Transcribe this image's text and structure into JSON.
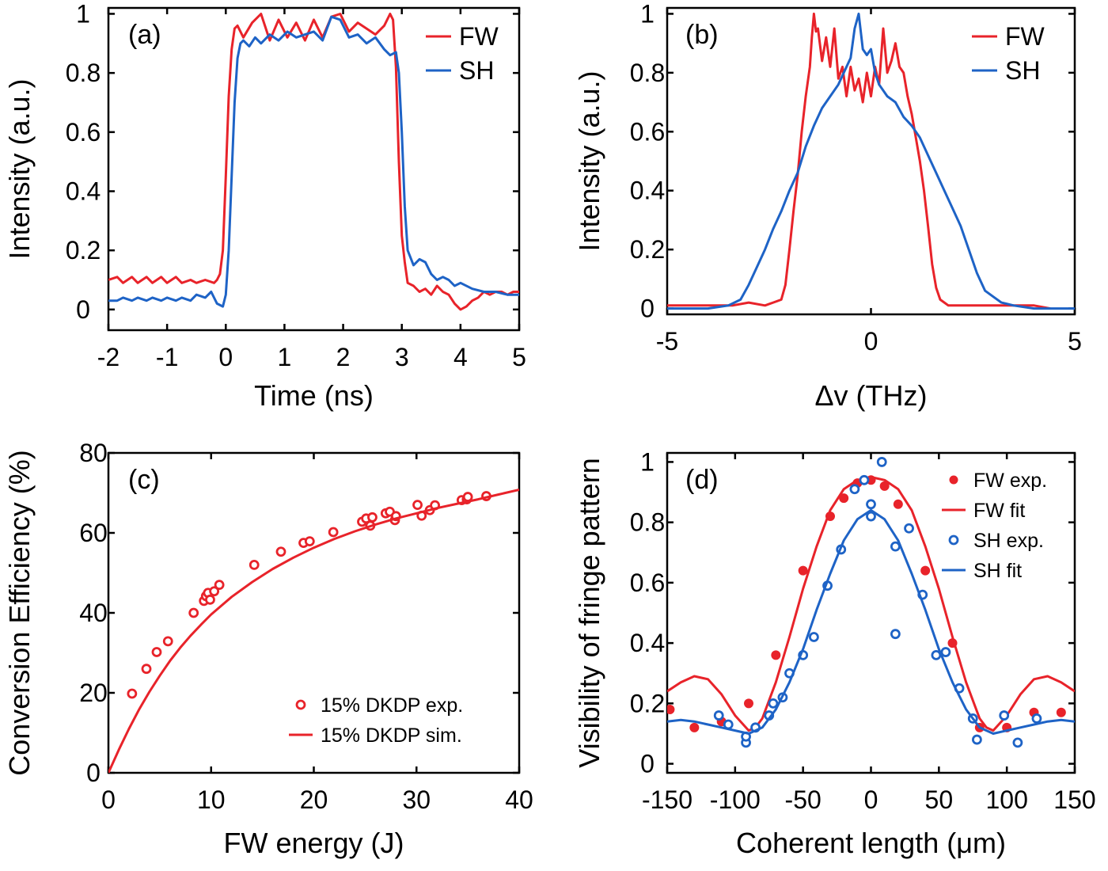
{
  "colors": {
    "fw": "#e8232a",
    "sh": "#1e63c6",
    "axis": "#000000"
  },
  "chart_data": [
    {
      "panel": "(a)",
      "type": "line",
      "xlabel": "Time (ns)",
      "ylabel": "Intensity (a.u.)",
      "xlim": [
        -2,
        5
      ],
      "ylim": [
        -0.07,
        1.02
      ],
      "xticks": [
        -2,
        -1,
        0,
        1,
        2,
        3,
        4,
        5
      ],
      "yticks": [
        0,
        0.2,
        0.4,
        0.6,
        0.8,
        1
      ],
      "xtick_labels": [
        "-2",
        "-1",
        "0",
        "1",
        "2",
        "3",
        "4",
        "5"
      ],
      "ytick_labels": [
        "0",
        "0.2",
        "0.4",
        "0.6",
        "0.8",
        "1"
      ],
      "legend": "top-right",
      "series": [
        {
          "name": "FW",
          "color": "fw",
          "style": "line",
          "x": [
            -2.0,
            -1.85,
            -1.75,
            -1.6,
            -1.5,
            -1.35,
            -1.25,
            -1.1,
            -1.0,
            -0.85,
            -0.75,
            -0.6,
            -0.5,
            -0.35,
            -0.2,
            -0.15,
            -0.1,
            -0.05,
            0.0,
            0.05,
            0.1,
            0.15,
            0.2,
            0.3,
            0.45,
            0.6,
            0.75,
            0.9,
            1.05,
            1.2,
            1.35,
            1.5,
            1.65,
            1.8,
            1.95,
            2.1,
            2.25,
            2.4,
            2.55,
            2.7,
            2.8,
            2.85,
            2.9,
            2.95,
            3.0,
            3.05,
            3.1,
            3.2,
            3.3,
            3.4,
            3.5,
            3.6,
            3.7,
            3.8,
            3.9,
            4.0,
            4.1,
            4.2,
            4.3,
            4.4,
            4.5,
            4.6,
            4.7,
            4.8,
            4.9,
            5.0
          ],
          "y": [
            0.1,
            0.11,
            0.09,
            0.11,
            0.09,
            0.11,
            0.09,
            0.11,
            0.09,
            0.11,
            0.09,
            0.1,
            0.09,
            0.1,
            0.09,
            0.1,
            0.12,
            0.2,
            0.45,
            0.72,
            0.88,
            0.95,
            0.96,
            0.92,
            0.97,
            1.0,
            0.91,
            0.98,
            0.92,
            0.97,
            0.91,
            0.98,
            0.92,
            0.99,
            1.0,
            0.94,
            0.97,
            0.95,
            0.93,
            0.96,
            1.0,
            0.98,
            0.82,
            0.5,
            0.25,
            0.16,
            0.09,
            0.08,
            0.06,
            0.07,
            0.05,
            0.08,
            0.06,
            0.05,
            0.02,
            0.0,
            0.01,
            0.03,
            0.04,
            0.06,
            0.05,
            0.06,
            0.06,
            0.05,
            0.06,
            0.06
          ]
        },
        {
          "name": "SH",
          "color": "sh",
          "style": "line",
          "x": [
            -2.0,
            -1.85,
            -1.75,
            -1.6,
            -1.5,
            -1.35,
            -1.25,
            -1.1,
            -1.0,
            -0.85,
            -0.75,
            -0.6,
            -0.5,
            -0.35,
            -0.25,
            -0.15,
            -0.05,
            0.0,
            0.05,
            0.1,
            0.15,
            0.2,
            0.25,
            0.3,
            0.4,
            0.5,
            0.6,
            0.75,
            0.9,
            1.05,
            1.2,
            1.35,
            1.5,
            1.65,
            1.8,
            1.95,
            2.1,
            2.25,
            2.4,
            2.55,
            2.7,
            2.8,
            2.9,
            2.95,
            3.0,
            3.05,
            3.1,
            3.2,
            3.3,
            3.4,
            3.5,
            3.6,
            3.7,
            3.8,
            3.9,
            4.0,
            4.2,
            4.4,
            4.6,
            4.8,
            5.0
          ],
          "y": [
            0.03,
            0.03,
            0.04,
            0.03,
            0.04,
            0.03,
            0.04,
            0.03,
            0.04,
            0.03,
            0.04,
            0.03,
            0.05,
            0.04,
            0.06,
            0.02,
            0.01,
            0.05,
            0.2,
            0.45,
            0.7,
            0.85,
            0.9,
            0.91,
            0.89,
            0.92,
            0.9,
            0.93,
            0.91,
            0.94,
            0.92,
            0.93,
            0.94,
            0.91,
            0.99,
            0.98,
            0.92,
            0.93,
            0.9,
            0.92,
            0.88,
            0.86,
            0.87,
            0.8,
            0.6,
            0.35,
            0.2,
            0.15,
            0.17,
            0.16,
            0.12,
            0.1,
            0.11,
            0.1,
            0.08,
            0.09,
            0.07,
            0.06,
            0.06,
            0.05,
            0.05
          ]
        }
      ]
    },
    {
      "panel": "(b)",
      "type": "line",
      "xlabel": "Δv (THz)",
      "ylabel": "Intensity (a.u.)",
      "xlim": [
        -5,
        5
      ],
      "ylim": [
        -0.02,
        1.02
      ],
      "xticks": [
        -5,
        0,
        5
      ],
      "yticks": [
        0,
        0.2,
        0.4,
        0.6,
        0.8,
        1
      ],
      "xtick_labels": [
        "-5",
        "0",
        "5"
      ],
      "ytick_labels": [
        "0",
        "0.2",
        "0.4",
        "0.6",
        "0.8",
        "1"
      ],
      "legend": "top-right",
      "series": [
        {
          "name": "FW",
          "color": "fw",
          "style": "line",
          "x": [
            -5.0,
            -4.6,
            -4.2,
            -3.8,
            -3.4,
            -3.0,
            -2.6,
            -2.4,
            -2.2,
            -2.1,
            -2.0,
            -1.9,
            -1.8,
            -1.7,
            -1.6,
            -1.5,
            -1.45,
            -1.4,
            -1.35,
            -1.3,
            -1.2,
            -1.1,
            -1.0,
            -0.9,
            -0.8,
            -0.7,
            -0.6,
            -0.5,
            -0.4,
            -0.3,
            -0.2,
            -0.1,
            0.0,
            0.1,
            0.2,
            0.3,
            0.4,
            0.5,
            0.6,
            0.7,
            0.8,
            0.9,
            1.0,
            1.1,
            1.2,
            1.3,
            1.4,
            1.5,
            1.6,
            1.7,
            1.8,
            1.9,
            2.0,
            2.4,
            2.8,
            3.2,
            3.6,
            4.0,
            4.4
          ],
          "y": [
            0.01,
            0.01,
            0.01,
            0.01,
            0.01,
            0.02,
            0.01,
            0.02,
            0.03,
            0.08,
            0.2,
            0.33,
            0.45,
            0.6,
            0.72,
            0.82,
            0.92,
            1.0,
            0.94,
            0.95,
            0.84,
            0.92,
            0.82,
            0.95,
            0.78,
            0.82,
            0.72,
            0.82,
            0.74,
            0.78,
            0.7,
            0.8,
            0.72,
            0.82,
            0.76,
            0.95,
            0.8,
            0.84,
            0.9,
            0.82,
            0.8,
            0.72,
            0.66,
            0.58,
            0.5,
            0.4,
            0.28,
            0.15,
            0.07,
            0.03,
            0.02,
            0.01,
            0.01,
            0.01,
            0.01,
            0.01,
            0.01,
            0.01,
            0.0
          ]
        },
        {
          "name": "SH",
          "color": "sh",
          "style": "line",
          "x": [
            -5.0,
            -4.5,
            -4.0,
            -3.5,
            -3.2,
            -3.0,
            -2.8,
            -2.6,
            -2.4,
            -2.2,
            -2.0,
            -1.8,
            -1.6,
            -1.4,
            -1.2,
            -1.0,
            -0.8,
            -0.6,
            -0.5,
            -0.4,
            -0.3,
            -0.2,
            -0.1,
            0.0,
            0.1,
            0.2,
            0.4,
            0.6,
            0.8,
            1.0,
            1.2,
            1.4,
            1.6,
            1.8,
            2.0,
            2.2,
            2.4,
            2.6,
            2.8,
            3.0,
            3.2,
            3.5,
            4.0,
            4.5,
            5.0
          ],
          "y": [
            0.0,
            0.0,
            0.0,
            0.01,
            0.03,
            0.08,
            0.14,
            0.2,
            0.27,
            0.33,
            0.4,
            0.46,
            0.55,
            0.62,
            0.68,
            0.72,
            0.76,
            0.82,
            0.85,
            0.95,
            1.0,
            0.88,
            0.86,
            0.88,
            0.8,
            0.76,
            0.72,
            0.7,
            0.65,
            0.62,
            0.58,
            0.52,
            0.46,
            0.4,
            0.34,
            0.28,
            0.2,
            0.12,
            0.06,
            0.04,
            0.02,
            0.01,
            0.0,
            0.0,
            0.0
          ]
        }
      ]
    },
    {
      "panel": "(c)",
      "type": "scatter",
      "xlabel": "FW energy (J)",
      "ylabel": "Conversion Efficiency (%)",
      "xlim": [
        0,
        40
      ],
      "ylim": [
        0,
        80
      ],
      "xticks": [
        0,
        10,
        20,
        30,
        40
      ],
      "yticks": [
        0,
        20,
        40,
        60,
        80
      ],
      "xtick_labels": [
        "0",
        "10",
        "20",
        "30",
        "40"
      ],
      "ytick_labels": [
        "0",
        "20",
        "40",
        "60",
        "80"
      ],
      "legend": "bottom-right",
      "series": [
        {
          "name": "15% DKDP exp.",
          "color": "fw",
          "style": "open-circle",
          "x": [
            2.3,
            3.7,
            4.7,
            5.8,
            8.3,
            9.3,
            9.5,
            9.7,
            9.9,
            10.3,
            10.8,
            14.2,
            16.8,
            19.0,
            19.6,
            21.9,
            24.7,
            25.1,
            25.5,
            25.7,
            27.0,
            27.4,
            27.9,
            28.0,
            30.1,
            30.5,
            31.3,
            31.8,
            34.4,
            34.9,
            35.0,
            36.8
          ],
          "y": [
            19.8,
            26.0,
            30.2,
            32.9,
            40.0,
            43.0,
            44.2,
            45.0,
            43.3,
            45.4,
            47.0,
            52.0,
            55.3,
            57.5,
            57.9,
            60.2,
            62.8,
            63.6,
            61.8,
            63.9,
            64.9,
            65.3,
            63.2,
            64.2,
            67.0,
            64.3,
            65.7,
            66.9,
            68.2,
            68.4,
            69.0,
            69.2
          ]
        },
        {
          "name": "15% DKDP sim.",
          "color": "fw",
          "style": "line",
          "x": [
            0,
            1,
            2,
            3,
            4,
            5,
            6,
            7,
            8,
            9,
            10,
            12,
            14,
            16,
            18,
            20,
            22,
            24,
            26,
            28,
            30,
            32,
            34,
            36,
            38,
            40
          ],
          "y": [
            0.0,
            5.7,
            11.0,
            15.9,
            20.3,
            24.3,
            28.0,
            31.3,
            34.3,
            37.0,
            39.6,
            44.0,
            47.7,
            51.0,
            53.8,
            56.3,
            58.5,
            60.4,
            62.1,
            63.6,
            64.9,
            66.2,
            67.3,
            68.4,
            69.6,
            70.8
          ]
        }
      ]
    },
    {
      "panel": "(d)",
      "type": "scatter",
      "xlabel": "Coherent length (μm)",
      "ylabel": "Visibility of fringe pattern",
      "xlim": [
        -150,
        150
      ],
      "ylim": [
        -0.03,
        1.03
      ],
      "xticks": [
        -150,
        -100,
        -50,
        0,
        50,
        100,
        150
      ],
      "yticks": [
        0,
        0.2,
        0.4,
        0.6,
        0.8,
        1
      ],
      "xtick_labels": [
        "-150",
        "-100",
        "-50",
        "0",
        "50",
        "100",
        "150"
      ],
      "ytick_labels": [
        "0",
        "0.2",
        "0.4",
        "0.6",
        "0.8",
        "1"
      ],
      "legend": "top-right",
      "series": [
        {
          "name": "FW exp.",
          "color": "fw",
          "style": "filled-circle",
          "x": [
            -148,
            -130,
            -110,
            -90,
            -70,
            -50,
            -30,
            -20,
            -10,
            0,
            10,
            20,
            40,
            60,
            80,
            100,
            120,
            140
          ],
          "y": [
            0.18,
            0.12,
            0.14,
            0.2,
            0.36,
            0.64,
            0.82,
            0.88,
            0.93,
            0.94,
            0.92,
            0.86,
            0.64,
            0.4,
            0.12,
            0.12,
            0.17,
            0.17
          ]
        },
        {
          "name": "FW fit",
          "color": "fw",
          "style": "line",
          "x": [
            -150,
            -140,
            -130,
            -120,
            -110,
            -100,
            -90,
            -85,
            -80,
            -70,
            -60,
            -50,
            -40,
            -30,
            -20,
            -10,
            0,
            10,
            20,
            30,
            40,
            50,
            60,
            70,
            80,
            85,
            90,
            100,
            110,
            120,
            130,
            140,
            150
          ],
          "y": [
            0.24,
            0.27,
            0.29,
            0.28,
            0.23,
            0.16,
            0.11,
            0.12,
            0.15,
            0.27,
            0.42,
            0.58,
            0.72,
            0.84,
            0.91,
            0.94,
            0.95,
            0.94,
            0.91,
            0.84,
            0.72,
            0.58,
            0.42,
            0.27,
            0.15,
            0.12,
            0.11,
            0.16,
            0.23,
            0.28,
            0.29,
            0.27,
            0.24
          ]
        },
        {
          "name": "SH exp.",
          "color": "sh",
          "style": "open-circle",
          "x": [
            -112,
            -105,
            -92,
            -92,
            -85,
            -75,
            -72,
            -65,
            -60,
            -50,
            -42,
            -32,
            -22,
            -12,
            -5,
            0,
            0,
            8,
            18,
            18,
            28,
            38,
            48,
            55,
            65,
            75,
            78,
            98,
            108,
            122
          ],
          "y": [
            0.16,
            0.13,
            0.07,
            0.09,
            0.12,
            0.16,
            0.2,
            0.22,
            0.3,
            0.36,
            0.42,
            0.59,
            0.71,
            0.91,
            0.94,
            0.86,
            0.82,
            1.0,
            0.72,
            0.43,
            0.78,
            0.56,
            0.36,
            0.37,
            0.25,
            0.15,
            0.08,
            0.16,
            0.07,
            0.15
          ]
        },
        {
          "name": "SH fit",
          "color": "sh",
          "style": "line",
          "x": [
            -150,
            -140,
            -130,
            -120,
            -110,
            -100,
            -90,
            -80,
            -70,
            -60,
            -50,
            -40,
            -30,
            -20,
            -10,
            0,
            10,
            20,
            30,
            40,
            50,
            60,
            70,
            80,
            90,
            100,
            110,
            120,
            130,
            140,
            150
          ],
          "y": [
            0.14,
            0.145,
            0.14,
            0.13,
            0.12,
            0.11,
            0.1,
            0.12,
            0.18,
            0.27,
            0.38,
            0.51,
            0.63,
            0.74,
            0.81,
            0.84,
            0.81,
            0.74,
            0.63,
            0.51,
            0.38,
            0.27,
            0.18,
            0.12,
            0.1,
            0.11,
            0.12,
            0.13,
            0.14,
            0.145,
            0.14
          ]
        }
      ]
    }
  ]
}
